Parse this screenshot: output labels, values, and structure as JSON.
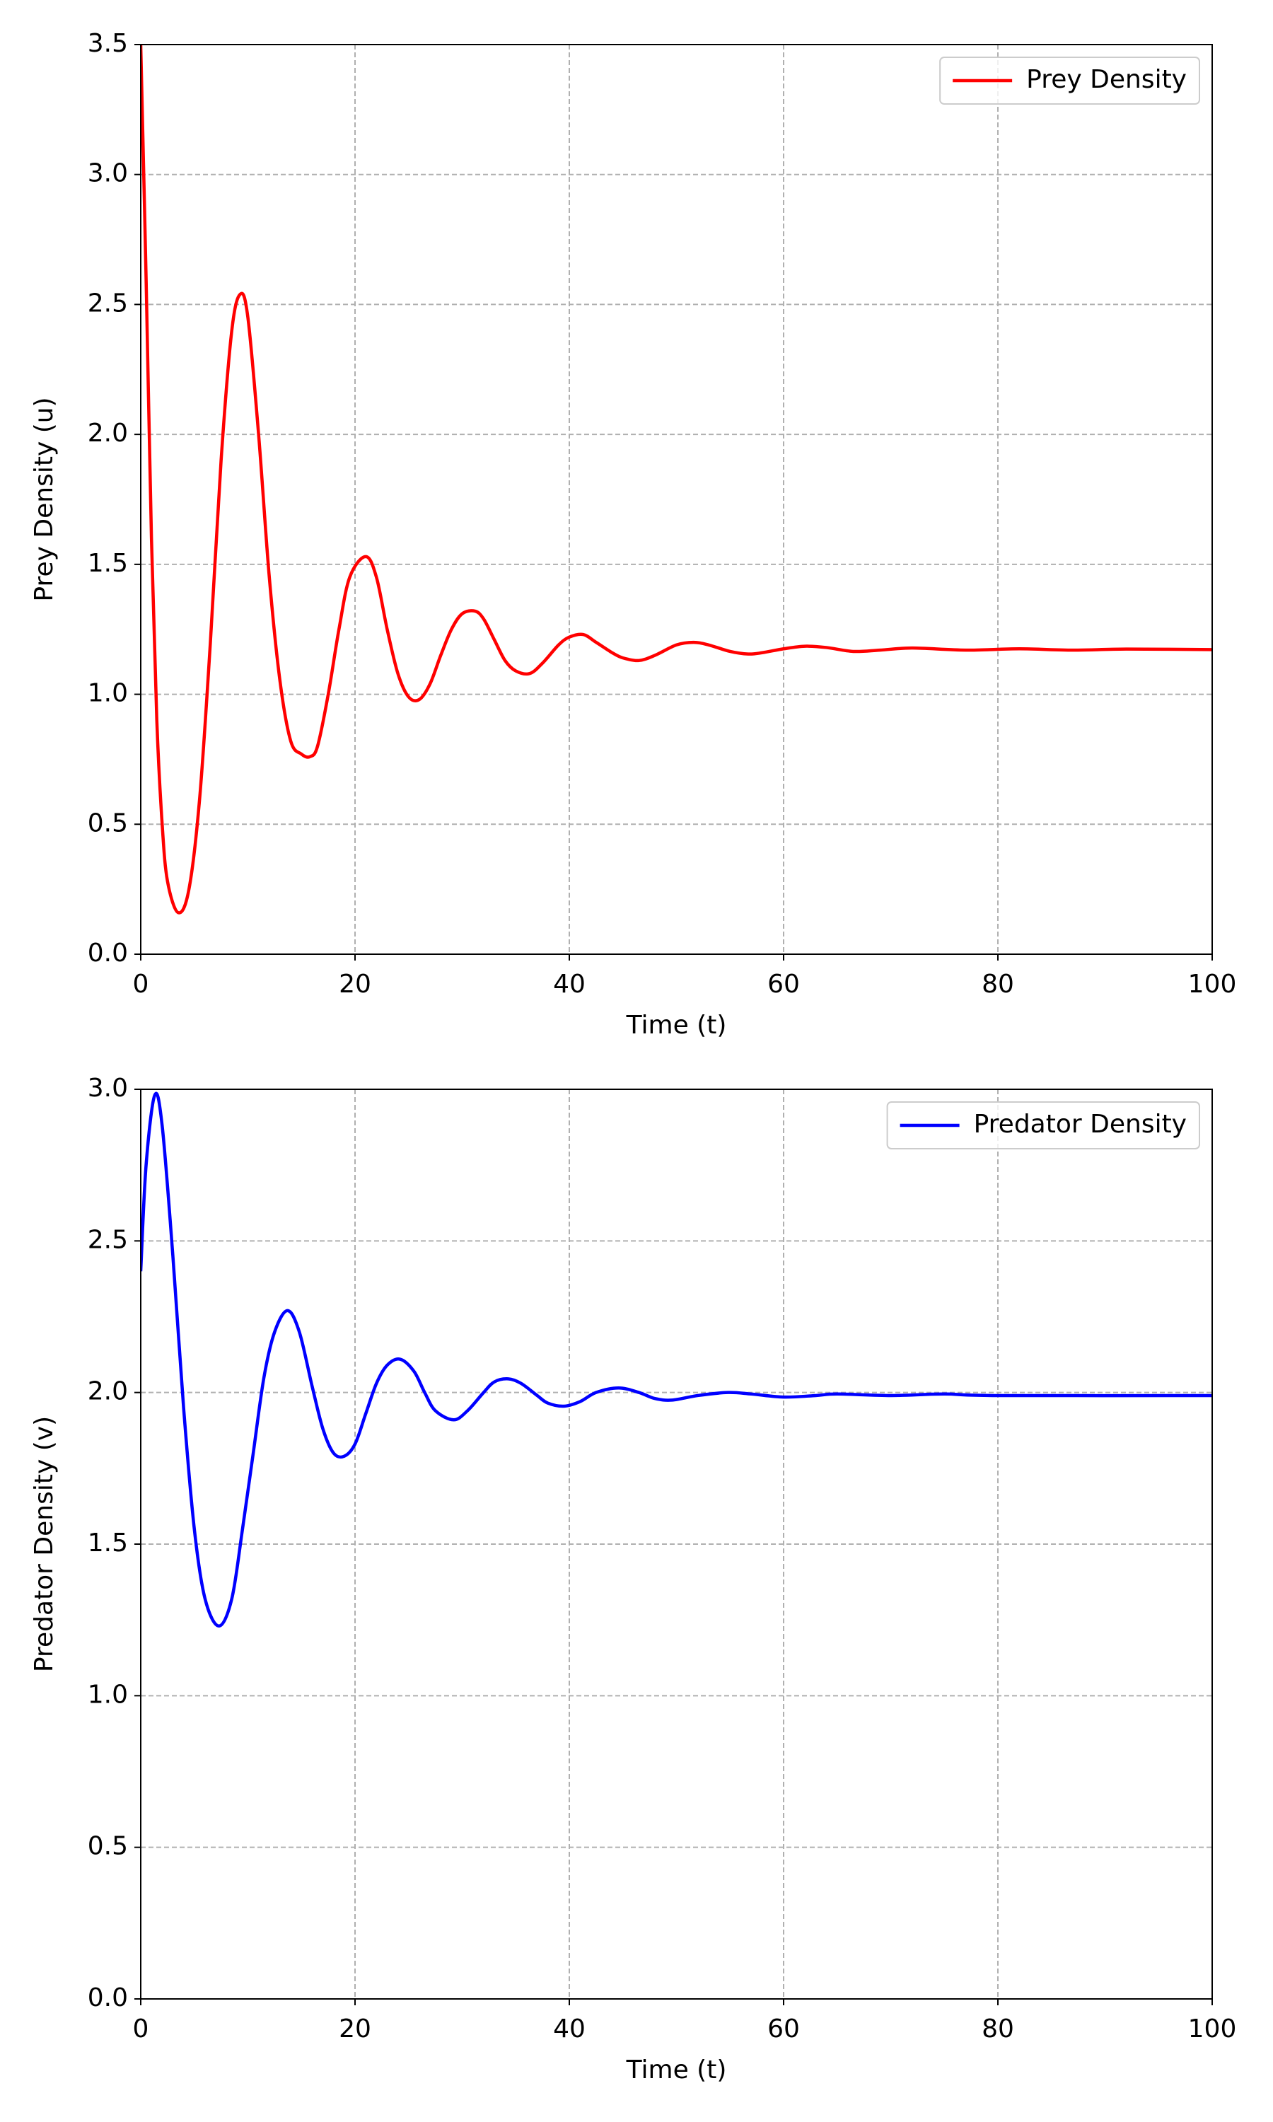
{
  "chart_data": [
    {
      "type": "line",
      "xlabel": "Time (t)",
      "ylabel": "Prey Density (u)",
      "xlim": [
        0,
        100
      ],
      "ylim": [
        0,
        3.5
      ],
      "xticks": [
        0,
        20,
        40,
        60,
        80,
        100
      ],
      "yticks": [
        {
          "value": 0,
          "label": "0.0"
        },
        0.5,
        {
          "value": 1,
          "label": "1.0"
        },
        1.5,
        {
          "value": 2,
          "label": "2.0"
        },
        2.5,
        {
          "value": 3,
          "label": "3.0"
        },
        3.5
      ],
      "grid": true,
      "legend": "upper right",
      "x": [
        0,
        0.5,
        1,
        1.5,
        2,
        2.5,
        3.5,
        4.5,
        5.5,
        6.5,
        7.5,
        8.5,
        9.3,
        10,
        11,
        12,
        13,
        14,
        15,
        15.8,
        16.5,
        17.5,
        18.5,
        19.5,
        21,
        22,
        23,
        24,
        25,
        26,
        27,
        28,
        29,
        30,
        31.2,
        32,
        33,
        34,
        35,
        36.3,
        37.5,
        39,
        40,
        41.3,
        42.5,
        44,
        45,
        46.5,
        48,
        50,
        51.6,
        53,
        55,
        56.7,
        58,
        60,
        62,
        64,
        66.5,
        69,
        72,
        77,
        82,
        87,
        92,
        100
      ],
      "series": [
        {
          "name": "Prey Density",
          "color": "#ff0000",
          "values": [
            3.5,
            2.6,
            1.6,
            0.9,
            0.5,
            0.28,
            0.16,
            0.25,
            0.6,
            1.2,
            1.9,
            2.4,
            2.54,
            2.45,
            2.0,
            1.45,
            1.05,
            0.82,
            0.77,
            0.76,
            0.8,
            1.0,
            1.25,
            1.45,
            1.53,
            1.45,
            1.25,
            1.08,
            0.99,
            0.98,
            1.04,
            1.15,
            1.25,
            1.31,
            1.32,
            1.29,
            1.21,
            1.13,
            1.09,
            1.08,
            1.12,
            1.19,
            1.22,
            1.23,
            1.2,
            1.16,
            1.14,
            1.13,
            1.15,
            1.19,
            1.2,
            1.19,
            1.165,
            1.155,
            1.16,
            1.175,
            1.185,
            1.18,
            1.165,
            1.17,
            1.178,
            1.17,
            1.175,
            1.17,
            1.174,
            1.172
          ]
        }
      ]
    },
    {
      "type": "line",
      "xlabel": "Time (t)",
      "ylabel": "Predator Density (v)",
      "xlim": [
        0,
        100
      ],
      "ylim": [
        0,
        3
      ],
      "xticks": [
        0,
        20,
        40,
        60,
        80,
        100
      ],
      "yticks": [
        {
          "value": 0,
          "label": "0.0"
        },
        0.5,
        {
          "value": 1,
          "label": "1.0"
        },
        1.5,
        {
          "value": 2,
          "label": "2.0"
        },
        2.5,
        {
          "value": 3,
          "label": "3.0"
        }
      ],
      "grid": true,
      "legend": "upper right",
      "x": [
        0,
        0.5,
        1.3,
        2,
        3,
        4,
        5,
        6,
        7.3,
        8.5,
        9.5,
        10.5,
        11.5,
        12.5,
        13.7,
        14.8,
        16,
        17,
        18,
        19,
        20,
        21,
        22,
        23,
        24.2,
        25.5,
        26.5,
        27.5,
        29.2,
        30.5,
        32,
        33,
        34.3,
        35.5,
        37,
        38,
        39.5,
        41,
        42.5,
        44.6,
        46.5,
        48,
        49.6,
        52,
        54.8,
        57,
        60,
        63,
        65,
        70,
        75,
        80,
        100
      ],
      "series": [
        {
          "name": "Predator Density",
          "color": "#0000ff",
          "values": [
            2.4,
            2.75,
            2.98,
            2.88,
            2.45,
            1.95,
            1.55,
            1.32,
            1.23,
            1.32,
            1.55,
            1.8,
            2.05,
            2.2,
            2.27,
            2.2,
            2.02,
            1.88,
            1.8,
            1.79,
            1.83,
            1.93,
            2.03,
            2.09,
            2.11,
            2.07,
            2.0,
            1.94,
            1.91,
            1.94,
            2.0,
            2.035,
            2.045,
            2.03,
            1.99,
            1.965,
            1.955,
            1.97,
            2.0,
            2.015,
            2.0,
            1.98,
            1.975,
            1.99,
            2.0,
            1.995,
            1.985,
            1.99,
            1.995,
            1.99,
            1.995,
            1.99,
            1.99
          ]
        }
      ]
    }
  ]
}
